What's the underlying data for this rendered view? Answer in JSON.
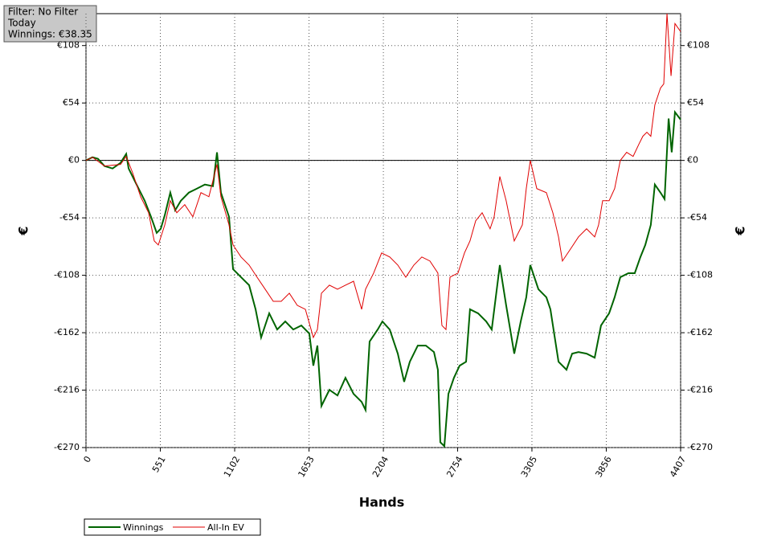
{
  "info": {
    "filter": "Filter: No Filter",
    "period": "Today",
    "winnings": "Winnings: €38.35"
  },
  "chart_data": {
    "type": "line",
    "x_label": "Hands",
    "y_label": "€",
    "y2_label": "€",
    "xlim": [
      0,
      4407
    ],
    "xticks": [
      0,
      551,
      1102,
      1653,
      2204,
      2754,
      3305,
      3856,
      4407
    ],
    "ylim": [
      -270,
      138
    ],
    "yticks": [
      {
        "value": -270,
        "label": "-€270"
      },
      {
        "value": -216,
        "label": "-€216"
      },
      {
        "value": -162,
        "label": "-€162"
      },
      {
        "value": -108,
        "label": "-€108"
      },
      {
        "value": -54,
        "label": "-€54"
      },
      {
        "value": 0,
        "label": "€0"
      },
      {
        "value": 54,
        "label": "€54"
      },
      {
        "value": 108,
        "label": "€108"
      }
    ],
    "grid": true,
    "zero_line": true,
    "legend": "bottom-left",
    "series": [
      {
        "name": "Winnings",
        "color": "#006400",
        "x": [
          0,
          48,
          89,
          137,
          197,
          256,
          298,
          316,
          375,
          435,
          482,
          524,
          554,
          584,
          625,
          661,
          703,
          762,
          822,
          881,
          941,
          971,
          1000,
          1060,
          1090,
          1149,
          1209,
          1257,
          1298,
          1358,
          1417,
          1477,
          1536,
          1596,
          1655,
          1685,
          1715,
          1745,
          1804,
          1864,
          1923,
          1983,
          2043,
          2072,
          2102,
          2162,
          2197,
          2251,
          2311,
          2358,
          2400,
          2459,
          2519,
          2579,
          2608,
          2626,
          2656,
          2686,
          2727,
          2769,
          2817,
          2846,
          2906,
          2966,
          3007,
          3067,
          3114,
          3174,
          3222,
          3263,
          3293,
          3353,
          3412,
          3442,
          3502,
          3561,
          3603,
          3650,
          3710,
          3770,
          3817,
          3877,
          3918,
          3960,
          4020,
          4067,
          4109,
          4145,
          4186,
          4216,
          4258,
          4288,
          4318,
          4341,
          4365,
          4407
        ],
        "values": [
          0,
          3.0,
          1.5,
          -5.3,
          -7.6,
          -2.3,
          6.1,
          -7.6,
          -22.7,
          -37.9,
          -53.0,
          -68.1,
          -64.3,
          -51.5,
          -30.3,
          -46.9,
          -37.9,
          -30.3,
          -26.5,
          -22.7,
          -24.2,
          7.6,
          -30.3,
          -53.0,
          -102.2,
          -109.8,
          -117.3,
          -140.0,
          -166.5,
          -143.8,
          -159.0,
          -151.4,
          -159.0,
          -155.2,
          -162.8,
          -193.0,
          -174.1,
          -230.9,
          -215.7,
          -221.0,
          -204.4,
          -219.5,
          -227.1,
          -234.7,
          -170.3,
          -159.0,
          -151.4,
          -159.0,
          -181.7,
          -208.2,
          -189.3,
          -174.1,
          -174.1,
          -180.2,
          -196.8,
          -265.0,
          -268.7,
          -219.5,
          -204.4,
          -193.0,
          -189.3,
          -140.0,
          -143.8,
          -151.4,
          -159.0,
          -98.4,
          -136.3,
          -181.7,
          -151.4,
          -128.7,
          -98.4,
          -121.1,
          -128.7,
          -140.0,
          -189.3,
          -196.8,
          -181.7,
          -180.2,
          -181.7,
          -185.5,
          -155.2,
          -143.8,
          -128.7,
          -109.8,
          -106.0,
          -106.0,
          -90.8,
          -79.5,
          -60.6,
          -22.7,
          -30.3,
          -36.3,
          39.4,
          7.6,
          45.4,
          38.35
        ]
      },
      {
        "name": "All-In EV",
        "color": "#e00000",
        "x": [
          0,
          48,
          137,
          256,
          298,
          345,
          405,
          464,
          506,
          536,
          584,
          625,
          673,
          732,
          792,
          852,
          911,
          971,
          1000,
          1060,
          1090,
          1149,
          1209,
          1268,
          1328,
          1388,
          1447,
          1507,
          1566,
          1626,
          1685,
          1715,
          1745,
          1804,
          1864,
          1923,
          1983,
          2043,
          2072,
          2132,
          2191,
          2251,
          2311,
          2370,
          2430,
          2489,
          2549,
          2608,
          2638,
          2668,
          2698,
          2757,
          2805,
          2846,
          2888,
          2936,
          2995,
          3025,
          3067,
          3114,
          3174,
          3234,
          3263,
          3293,
          3341,
          3412,
          3460,
          3502,
          3531,
          3591,
          3650,
          3710,
          3770,
          3799,
          3829,
          3877,
          3918,
          3960,
          4007,
          4055,
          4097,
          4127,
          4157,
          4186,
          4216,
          4258,
          4282,
          4306,
          4336,
          4365,
          4407
        ],
        "values": [
          0,
          3.0,
          -5.3,
          -3.8,
          3.8,
          -11.4,
          -34.1,
          -49.2,
          -75.7,
          -79.5,
          -60.6,
          -37.9,
          -49.2,
          -41.6,
          -53.0,
          -30.3,
          -34.1,
          -3.8,
          -34.1,
          -60.6,
          -79.5,
          -90.8,
          -98.4,
          -109.8,
          -121.1,
          -132.5,
          -132.5,
          -124.9,
          -136.3,
          -140.0,
          -166.5,
          -159.0,
          -124.9,
          -117.3,
          -121.1,
          -117.3,
          -113.6,
          -140.0,
          -121.1,
          -105.9,
          -87.0,
          -90.8,
          -98.4,
          -109.8,
          -98.4,
          -90.8,
          -94.6,
          -105.9,
          -155.2,
          -159.0,
          -109.8,
          -105.9,
          -87.0,
          -75.7,
          -56.8,
          -49.2,
          -64.3,
          -53.0,
          -15.1,
          -37.9,
          -75.7,
          -60.6,
          -26.5,
          0,
          -26.5,
          -30.3,
          -49.2,
          -71.9,
          -94.6,
          -83.3,
          -71.9,
          -64.3,
          -71.9,
          -60.6,
          -37.9,
          -37.9,
          -26.5,
          0,
          7.6,
          3.8,
          15.1,
          22.7,
          26.5,
          22.7,
          52.2,
          68.1,
          71.9,
          138,
          79.5,
          128.7,
          121.1
        ]
      }
    ]
  }
}
